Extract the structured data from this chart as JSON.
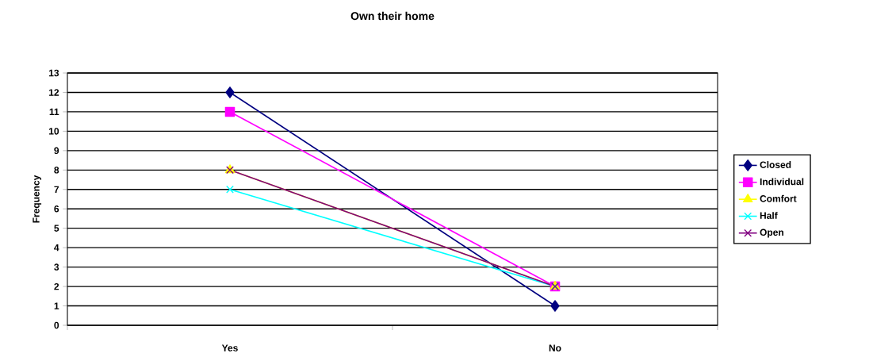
{
  "chart_data": {
    "type": "line",
    "title": "Own their home",
    "ylabel": "Frequency",
    "categories": [
      "Yes",
      "No"
    ],
    "series": [
      {
        "name": "Closed",
        "color": "#000080",
        "marker": "diamond",
        "values": [
          12,
          1
        ]
      },
      {
        "name": "Individual",
        "color": "#ff00ff",
        "marker": "square",
        "values": [
          11,
          2
        ]
      },
      {
        "name": "Comfort",
        "color": "#ffff00",
        "marker": "triangle",
        "values": [
          8,
          2
        ]
      },
      {
        "name": "Half",
        "color": "#00ffff",
        "marker": "cross",
        "values": [
          7,
          2
        ]
      },
      {
        "name": "Open",
        "color": "#800080",
        "marker": "cross",
        "values": [
          8,
          2
        ]
      }
    ],
    "ylim": [
      0,
      13
    ],
    "yticks": [
      0,
      1,
      2,
      3,
      4,
      5,
      6,
      7,
      8,
      9,
      10,
      11,
      12,
      13
    ],
    "grid": "y",
    "legend": "right"
  }
}
